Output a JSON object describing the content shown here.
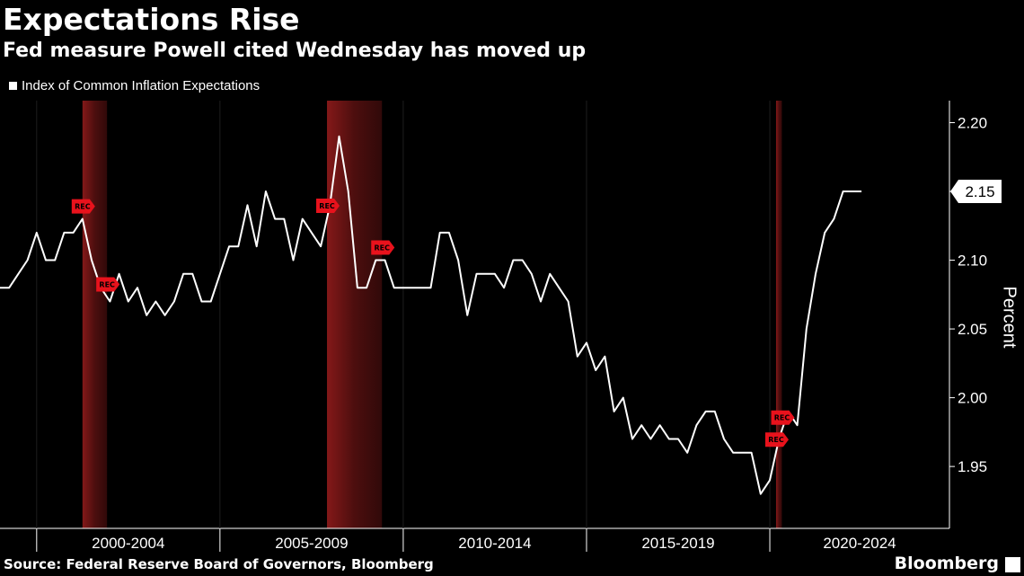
{
  "header": {
    "title": "Expectations Rise",
    "subtitle": "Fed measure Powell cited Wednesday has moved up",
    "legend_label": "Index of Common Inflation Expectations"
  },
  "footer": {
    "source": "Source: Federal Reserve Board of Governors, Bloomberg",
    "brand": "Bloomberg"
  },
  "colors": {
    "background": "#000000",
    "line": "#ffffff",
    "recession_shade": "#8b1a1a",
    "rec_flag": "#e8121c",
    "axis": "#ffffff"
  },
  "icons": {
    "brand_mark": "bloomberg-terminal-icon",
    "rec_marker": "recession-flag-icon"
  },
  "chart_data": {
    "type": "line",
    "title": "Expectations Rise",
    "subtitle": "Fed measure Powell cited Wednesday has moved up",
    "ylabel": "Percent",
    "xlabel": "",
    "ylim": [
      1.9,
      2.22
    ],
    "xlim": [
      1999.0,
      2024.9
    ],
    "y_axis_side": "right",
    "yticks": [
      1.95,
      2.0,
      2.05,
      2.1,
      2.15,
      2.2
    ],
    "ytick_labels": [
      "1.95",
      "2.00",
      "2.05",
      "2.10",
      "2.15",
      "2.20"
    ],
    "x_groups": [
      {
        "label": "2000-2004",
        "start": 2000,
        "end": 2005
      },
      {
        "label": "2005-2009",
        "start": 2005,
        "end": 2010
      },
      {
        "label": "2010-2014",
        "start": 2010,
        "end": 2015
      },
      {
        "label": "2015-2019",
        "start": 2015,
        "end": 2020
      },
      {
        "label": "2020-2024",
        "start": 2020,
        "end": 2025
      }
    ],
    "grid": "vertical",
    "legend_position": "top-left",
    "last_value_label": "2.15",
    "rec_label": "REC",
    "recessions": [
      {
        "start": 2001.25,
        "end": 2001.92
      },
      {
        "start": 2007.92,
        "end": 2009.42
      },
      {
        "start": 2020.17,
        "end": 2020.33
      }
    ],
    "series": [
      {
        "name": "Index of Common Inflation Expectations",
        "x": [
          1999.0,
          1999.25,
          1999.5,
          1999.75,
          2000.0,
          2000.25,
          2000.5,
          2000.75,
          2001.0,
          2001.25,
          2001.5,
          2001.75,
          2002.0,
          2002.25,
          2002.5,
          2002.75,
          2003.0,
          2003.25,
          2003.5,
          2003.75,
          2004.0,
          2004.25,
          2004.5,
          2004.75,
          2005.0,
          2005.25,
          2005.5,
          2005.75,
          2006.0,
          2006.25,
          2006.5,
          2006.75,
          2007.0,
          2007.25,
          2007.5,
          2007.75,
          2008.0,
          2008.25,
          2008.5,
          2008.75,
          2009.0,
          2009.25,
          2009.5,
          2009.75,
          2010.0,
          2010.25,
          2010.5,
          2010.75,
          2011.0,
          2011.25,
          2011.5,
          2011.75,
          2012.0,
          2012.25,
          2012.5,
          2012.75,
          2013.0,
          2013.25,
          2013.5,
          2013.75,
          2014.0,
          2014.25,
          2014.5,
          2014.75,
          2015.0,
          2015.25,
          2015.5,
          2015.75,
          2016.0,
          2016.25,
          2016.5,
          2016.75,
          2017.0,
          2017.25,
          2017.5,
          2017.75,
          2018.0,
          2018.25,
          2018.5,
          2018.75,
          2019.0,
          2019.25,
          2019.5,
          2019.75,
          2020.0,
          2020.25,
          2020.5,
          2020.75,
          2021.0,
          2021.25,
          2021.5,
          2021.75,
          2022.0,
          2022.25,
          2022.5
        ],
        "values": [
          2.08,
          2.08,
          2.09,
          2.1,
          2.12,
          2.1,
          2.1,
          2.12,
          2.12,
          2.13,
          2.1,
          2.08,
          2.07,
          2.09,
          2.07,
          2.08,
          2.06,
          2.07,
          2.06,
          2.07,
          2.09,
          2.09,
          2.07,
          2.07,
          2.09,
          2.11,
          2.11,
          2.14,
          2.11,
          2.15,
          2.13,
          2.13,
          2.1,
          2.13,
          2.12,
          2.11,
          2.14,
          2.19,
          2.15,
          2.08,
          2.08,
          2.1,
          2.1,
          2.08,
          2.08,
          2.08,
          2.08,
          2.08,
          2.12,
          2.12,
          2.1,
          2.06,
          2.09,
          2.09,
          2.09,
          2.08,
          2.1,
          2.1,
          2.09,
          2.07,
          2.09,
          2.08,
          2.07,
          2.03,
          2.04,
          2.02,
          2.03,
          1.99,
          2.0,
          1.97,
          1.98,
          1.97,
          1.98,
          1.97,
          1.97,
          1.96,
          1.98,
          1.99,
          1.99,
          1.97,
          1.96,
          1.96,
          1.96,
          1.93,
          1.94,
          1.97,
          1.99,
          1.98,
          2.05,
          2.09,
          2.12,
          2.13,
          2.15,
          2.15,
          2.15
        ]
      }
    ]
  }
}
